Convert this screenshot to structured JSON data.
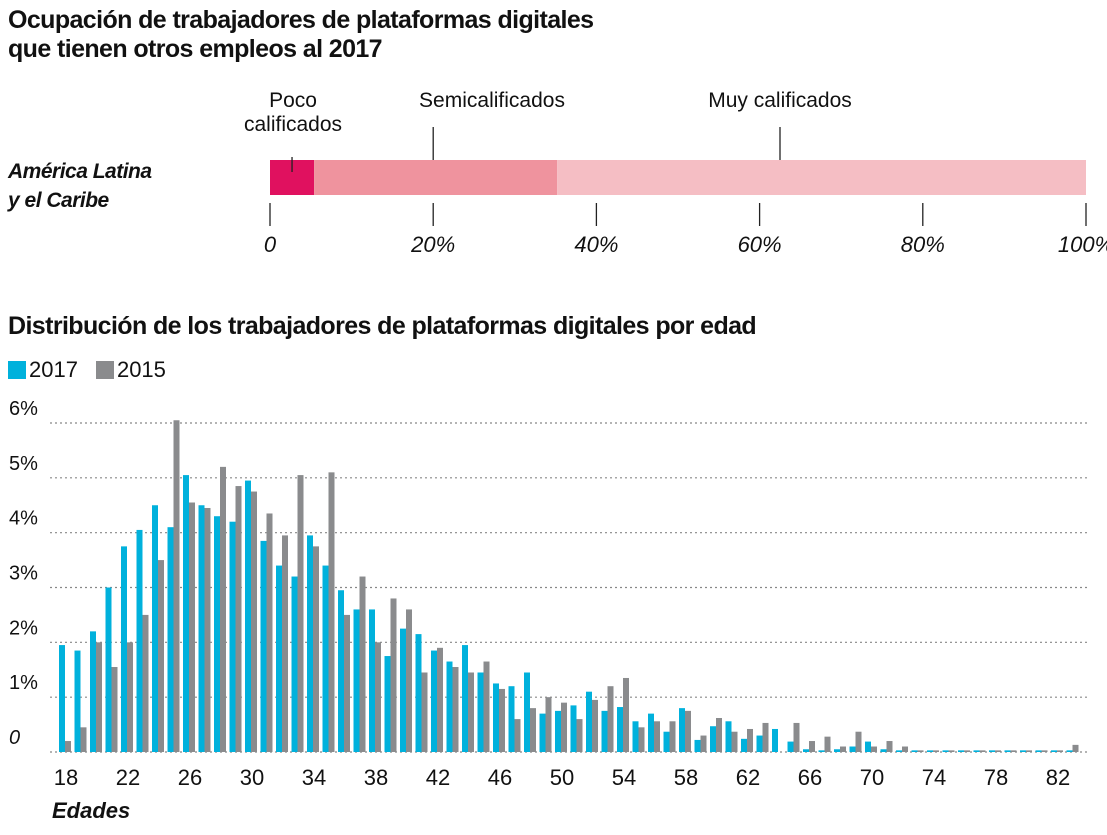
{
  "chart_data": [
    {
      "type": "bar",
      "orientation": "horizontal-stacked",
      "title": "Ocupación de trabajadores de plataformas digitales que tienen otros empleos al 2017",
      "title_lines": [
        "Ocupación de trabajadores de plataformas digitales",
        "que tienen otros empleos al 2017"
      ],
      "categories": [
        "América Latina y el Caribe"
      ],
      "category_lines": [
        "América Latina",
        "y el Caribe"
      ],
      "series": [
        {
          "name": "Poco calificados",
          "name_lines": [
            "Poco",
            "calificados"
          ],
          "values": [
            5.4
          ],
          "color": "#e0115f"
        },
        {
          "name": "Semicalificados",
          "values": [
            29.8
          ],
          "color": "#ef939e"
        },
        {
          "name": "Muy calificados",
          "values": [
            64.8
          ],
          "color": "#f5bec4"
        }
      ],
      "xlim": [
        0,
        100
      ],
      "xticks": [
        "0",
        "20%",
        "40%",
        "60%",
        "80%",
        "100%"
      ],
      "grid": false
    },
    {
      "type": "bar",
      "title": "Distribución de los trabajadores de plataformas digitales por edad",
      "xlabel": "Edades",
      "ylabel": "",
      "ylim": [
        0,
        6
      ],
      "yticks": [
        "0",
        "1%",
        "2%",
        "3%",
        "4%",
        "5%",
        "6%"
      ],
      "xticks": [
        "18",
        "22",
        "26",
        "30",
        "34",
        "38",
        "42",
        "46",
        "50",
        "54",
        "58",
        "62",
        "66",
        "70",
        "74",
        "78",
        "82"
      ],
      "grid": true,
      "legend": "top-left",
      "categories": [
        18,
        19,
        20,
        21,
        22,
        23,
        24,
        25,
        26,
        27,
        28,
        29,
        30,
        31,
        32,
        33,
        34,
        35,
        36,
        37,
        38,
        39,
        40,
        41,
        42,
        43,
        44,
        45,
        46,
        47,
        48,
        49,
        50,
        51,
        52,
        53,
        54,
        55,
        56,
        57,
        58,
        59,
        60,
        61,
        62,
        63,
        64,
        65,
        66,
        67,
        68,
        69,
        70,
        71,
        72,
        73,
        74,
        75,
        76,
        77,
        78,
        79,
        80,
        81,
        82,
        83
      ],
      "series": [
        {
          "name": "2017",
          "color": "#00b1dc",
          "values": [
            1.95,
            1.85,
            2.2,
            3.0,
            3.75,
            4.05,
            4.5,
            4.1,
            5.05,
            4.5,
            4.3,
            4.2,
            4.95,
            3.85,
            3.4,
            3.2,
            3.95,
            3.4,
            2.95,
            2.6,
            2.6,
            1.75,
            2.25,
            2.15,
            1.85,
            1.65,
            1.95,
            1.45,
            1.25,
            1.2,
            1.45,
            0.7,
            0.75,
            0.85,
            1.1,
            0.75,
            0.82,
            0.56,
            0.7,
            0.37,
            0.8,
            0.22,
            0.47,
            0.56,
            0.24,
            0.3,
            0.42,
            0.19,
            0.05,
            0.03,
            0.05,
            0.1,
            0.19,
            0.05,
            0.03,
            0.03,
            0.03,
            0.03,
            0.03,
            0.03,
            0.03,
            0.03,
            0.03,
            0.03,
            0.03,
            0.03
          ]
        },
        {
          "name": "2015",
          "color": "#8a8b8d",
          "values": [
            0.2,
            0.45,
            2.0,
            1.55,
            2.0,
            2.5,
            3.5,
            6.05,
            4.55,
            4.45,
            5.2,
            4.85,
            4.75,
            4.35,
            3.95,
            5.05,
            3.75,
            5.1,
            2.5,
            3.2,
            2.0,
            2.8,
            2.6,
            1.45,
            1.9,
            1.55,
            1.45,
            1.65,
            1.15,
            0.6,
            0.8,
            1.0,
            0.9,
            0.6,
            0.95,
            1.2,
            1.35,
            0.45,
            0.56,
            0.56,
            0.75,
            0.3,
            0.62,
            0.37,
            0.42,
            0.53,
            0.0,
            0.53,
            0.2,
            0.28,
            0.1,
            0.37,
            0.1,
            0.2,
            0.1,
            0.03,
            0.03,
            0.03,
            0.03,
            0.03,
            0.03,
            0.03,
            0.03,
            0.03,
            0.03,
            0.13
          ]
        }
      ]
    }
  ]
}
